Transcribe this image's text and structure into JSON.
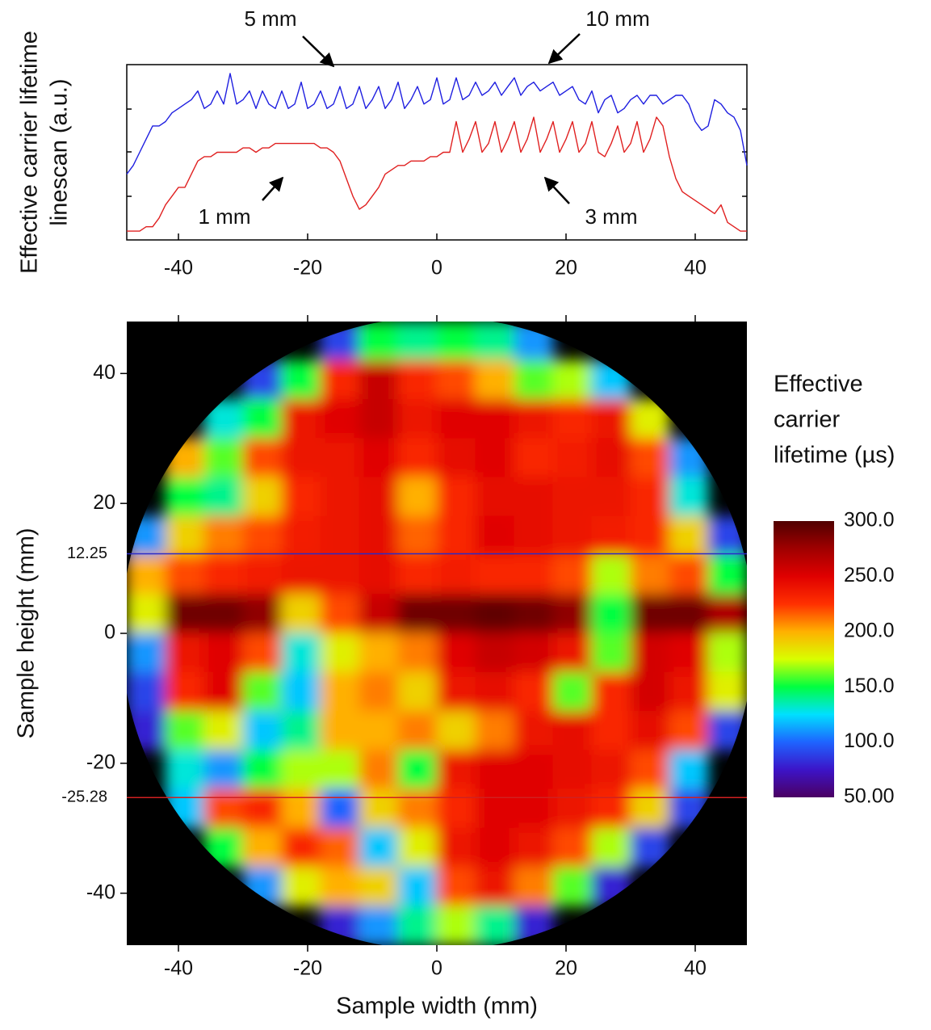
{
  "chart_data": [
    {
      "type": "line",
      "ylabel_lines": [
        "Effective carrier lifetime",
        "linescan (a.u.)"
      ],
      "annotations": [
        "5 mm",
        "10 mm",
        "1 mm",
        "3 mm"
      ],
      "x": [
        -48,
        -47,
        -46,
        -45,
        -44,
        -43,
        -42,
        -41,
        -40,
        -39,
        -38,
        -37,
        -36,
        -35,
        -34,
        -33,
        -32,
        -31,
        -30,
        -29,
        -28,
        -27,
        -26,
        -25,
        -24,
        -23,
        -22,
        -21,
        -20,
        -19,
        -18,
        -17,
        -16,
        -15,
        -14,
        -13,
        -12,
        -11,
        -10,
        -9,
        -8,
        -7,
        -6,
        -5,
        -4,
        -3,
        -2,
        -1,
        0,
        1,
        2,
        3,
        4,
        5,
        6,
        7,
        8,
        9,
        10,
        11,
        12,
        13,
        14,
        15,
        16,
        17,
        18,
        19,
        20,
        21,
        22,
        23,
        24,
        25,
        26,
        27,
        28,
        29,
        30,
        31,
        32,
        33,
        34,
        35,
        36,
        37,
        38,
        39,
        40,
        41,
        42,
        43,
        44,
        45,
        46,
        47,
        48
      ],
      "series": [
        {
          "color": "#1f1fe0",
          "values": [
            1.5,
            1.7,
            2.0,
            2.3,
            2.6,
            2.6,
            2.7,
            2.9,
            3.0,
            3.1,
            3.2,
            3.4,
            3.0,
            3.1,
            3.4,
            3.1,
            3.8,
            3.1,
            3.2,
            3.4,
            3.0,
            3.4,
            3.1,
            3.0,
            3.4,
            3.0,
            3.1,
            3.6,
            3.0,
            3.1,
            3.4,
            3.0,
            3.1,
            3.5,
            3.0,
            3.1,
            3.5,
            3.0,
            3.2,
            3.5,
            3.0,
            3.2,
            3.6,
            3.0,
            3.2,
            3.5,
            3.1,
            3.2,
            3.7,
            3.1,
            3.2,
            3.7,
            3.2,
            3.3,
            3.6,
            3.3,
            3.4,
            3.6,
            3.3,
            3.5,
            3.7,
            3.3,
            3.5,
            3.6,
            3.4,
            3.5,
            3.6,
            3.3,
            3.4,
            3.5,
            3.2,
            3.1,
            3.4,
            2.9,
            3.2,
            3.3,
            2.9,
            3.0,
            3.2,
            3.3,
            3.1,
            3.3,
            3.3,
            3.1,
            3.2,
            3.3,
            3.3,
            3.1,
            2.7,
            2.5,
            2.6,
            3.2,
            3.1,
            2.9,
            2.8,
            2.5,
            1.7
          ]
        },
        {
          "color": "#e02020",
          "values": [
            0.2,
            0.2,
            0.2,
            0.3,
            0.3,
            0.5,
            0.8,
            1.0,
            1.2,
            1.2,
            1.5,
            1.8,
            1.9,
            1.9,
            2.0,
            2.0,
            2.0,
            2.0,
            2.1,
            2.1,
            2.0,
            2.1,
            2.1,
            2.2,
            2.2,
            2.2,
            2.2,
            2.2,
            2.2,
            2.2,
            2.1,
            2.1,
            2.0,
            1.8,
            1.4,
            1.0,
            0.7,
            0.8,
            1.0,
            1.2,
            1.5,
            1.6,
            1.7,
            1.7,
            1.8,
            1.8,
            1.8,
            1.9,
            1.9,
            2.0,
            2.0,
            2.7,
            2.0,
            2.3,
            2.7,
            2.0,
            2.2,
            2.7,
            2.0,
            2.3,
            2.7,
            2.0,
            2.3,
            2.8,
            2.0,
            2.3,
            2.7,
            2.0,
            2.3,
            2.7,
            2.0,
            2.2,
            2.7,
            2.0,
            1.9,
            2.2,
            2.6,
            2.0,
            2.2,
            2.7,
            2.0,
            2.3,
            2.8,
            2.6,
            1.9,
            1.4,
            1.1,
            1.0,
            0.9,
            0.8,
            0.7,
            0.6,
            0.8,
            0.4,
            0.3,
            0.2,
            0.2
          ]
        }
      ],
      "xlim": [
        -48,
        48
      ],
      "xticks": [
        -40,
        -20,
        0,
        20,
        40
      ],
      "ylim": [
        0,
        4
      ]
    },
    {
      "type": "heatmap",
      "xlabel": "Sample width (mm)",
      "ylabel": "Sample height (mm)",
      "xlim": [
        -48,
        48
      ],
      "xticks": [
        -40,
        -20,
        0,
        20,
        40
      ],
      "ylim": [
        -48,
        48
      ],
      "yticks": [
        -40,
        -20,
        0,
        20,
        40
      ],
      "linescans": [
        {
          "value": 12.25,
          "color": "#2a2ac8"
        },
        {
          "value": -25.28,
          "color": "#d02020"
        }
      ],
      "x": [
        -45,
        -39,
        -33,
        -27,
        -21,
        -15,
        -9,
        -3,
        3,
        9,
        15,
        21,
        27,
        33,
        39,
        45
      ],
      "y": [
        45,
        39,
        33,
        27,
        21,
        15,
        9,
        3,
        -3,
        -9,
        -15,
        -21,
        -27,
        -33,
        -39,
        -45
      ],
      "z": [
        [
          null,
          null,
          null,
          null,
          null,
          90,
          150,
          140,
          150,
          140,
          110,
          null,
          null,
          null,
          null,
          null
        ],
        [
          null,
          null,
          null,
          90,
          150,
          230,
          260,
          230,
          220,
          200,
          160,
          170,
          120,
          null,
          null,
          null
        ],
        [
          null,
          null,
          130,
          150,
          240,
          250,
          260,
          240,
          250,
          250,
          240,
          230,
          240,
          180,
          null,
          null
        ],
        [
          null,
          200,
          160,
          220,
          240,
          240,
          250,
          230,
          245,
          250,
          230,
          235,
          245,
          220,
          110,
          null
        ],
        [
          null,
          150,
          140,
          190,
          230,
          240,
          245,
          200,
          230,
          245,
          245,
          240,
          240,
          230,
          130,
          null
        ],
        [
          110,
          190,
          210,
          220,
          235,
          240,
          245,
          215,
          230,
          250,
          245,
          240,
          235,
          230,
          190,
          90
        ],
        [
          200,
          220,
          230,
          235,
          240,
          240,
          245,
          230,
          235,
          230,
          230,
          220,
          170,
          210,
          220,
          150
        ],
        [
          180,
          290,
          290,
          280,
          190,
          220,
          260,
          290,
          290,
          295,
          290,
          280,
          150,
          290,
          290,
          270
        ],
        [
          110,
          240,
          250,
          220,
          130,
          180,
          200,
          210,
          250,
          260,
          255,
          240,
          160,
          255,
          250,
          170
        ],
        [
          90,
          230,
          250,
          160,
          120,
          200,
          210,
          190,
          240,
          245,
          230,
          160,
          230,
          255,
          240,
          180
        ],
        [
          80,
          160,
          180,
          120,
          140,
          200,
          200,
          210,
          190,
          210,
          240,
          245,
          230,
          245,
          220,
          90
        ],
        [
          null,
          130,
          110,
          150,
          170,
          170,
          210,
          150,
          240,
          250,
          250,
          245,
          240,
          220,
          120,
          null
        ],
        [
          null,
          120,
          220,
          230,
          200,
          100,
          190,
          210,
          230,
          250,
          250,
          240,
          230,
          190,
          90,
          null
        ],
        [
          null,
          null,
          150,
          200,
          230,
          215,
          120,
          180,
          240,
          250,
          240,
          220,
          170,
          90,
          null,
          null
        ],
        [
          null,
          null,
          null,
          110,
          180,
          200,
          190,
          120,
          220,
          240,
          210,
          160,
          80,
          null,
          null,
          null
        ],
        [
          null,
          null,
          null,
          null,
          null,
          80,
          110,
          140,
          170,
          140,
          80,
          null,
          null,
          null,
          null,
          null
        ]
      ],
      "colorbar": {
        "title_lines": [
          "Effective",
          "carrier",
          "lifetime (µs)"
        ],
        "zlim": [
          50,
          300
        ],
        "ticks": [
          {
            "value": 300,
            "label": "300.0"
          },
          {
            "value": 250,
            "label": "250.0"
          },
          {
            "value": 200,
            "label": "200.0"
          },
          {
            "value": 150,
            "label": "150.0"
          },
          {
            "value": 100,
            "label": "100.0"
          },
          {
            "value": 50,
            "label": "50.00"
          }
        ],
        "colormap": [
          "#4b0062",
          "#3c14c8",
          "#1e64ff",
          "#00e0ff",
          "#00ff40",
          "#d8ff00",
          "#ffb000",
          "#ff3000",
          "#e00000",
          "#a00000",
          "#500000"
        ]
      }
    }
  ]
}
